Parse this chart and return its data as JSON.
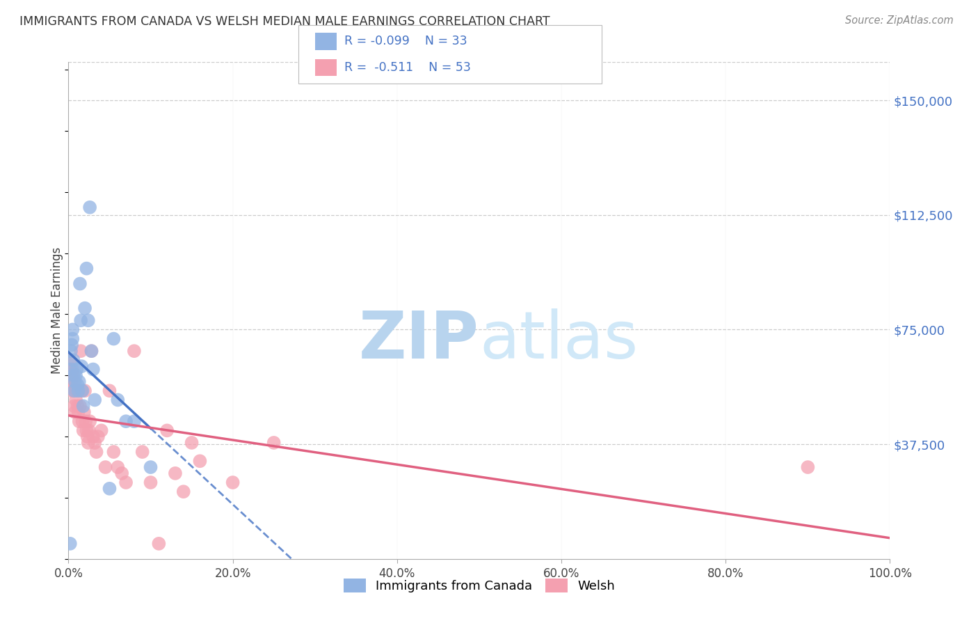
{
  "title": "IMMIGRANTS FROM CANADA VS WELSH MEDIAN MALE EARNINGS CORRELATION CHART",
  "source": "Source: ZipAtlas.com",
  "ylabel": "Median Male Earnings",
  "ytick_labels": [
    "$150,000",
    "$112,500",
    "$75,000",
    "$37,500"
  ],
  "ytick_values": [
    150000,
    112500,
    75000,
    37500
  ],
  "ylim": [
    0,
    162500
  ],
  "xlim": [
    0,
    100
  ],
  "xtick_values": [
    0,
    20,
    40,
    60,
    80,
    100
  ],
  "xtick_labels": [
    "0.0%",
    "20.0%",
    "40.0%",
    "60.0%",
    "80.0%",
    "100.0%"
  ],
  "legend_label1": "Immigrants from Canada",
  "legend_label2": "Welsh",
  "r1": "-0.099",
  "n1": "33",
  "r2": "-0.511",
  "n2": "53",
  "blue_color": "#92B4E3",
  "pink_color": "#F4A0B0",
  "line_blue": "#4472C4",
  "line_pink": "#E06080",
  "watermark_color": "#C8DEF0",
  "background": "#ffffff",
  "canada_x": [
    0.2,
    0.3,
    0.3,
    0.4,
    0.5,
    0.5,
    0.6,
    0.6,
    0.7,
    0.8,
    0.9,
    1.0,
    1.1,
    1.2,
    1.3,
    1.4,
    1.5,
    1.6,
    1.7,
    1.8,
    2.0,
    2.2,
    2.4,
    2.6,
    2.8,
    3.0,
    3.2,
    5.0,
    5.5,
    6.0,
    7.0,
    8.0,
    10.0
  ],
  "canada_y": [
    5000,
    62000,
    68000,
    70000,
    72000,
    75000,
    60000,
    65000,
    55000,
    58000,
    60000,
    62000,
    57000,
    55000,
    58000,
    90000,
    78000,
    63000,
    55000,
    50000,
    82000,
    95000,
    78000,
    115000,
    68000,
    62000,
    52000,
    23000,
    72000,
    52000,
    45000,
    45000,
    30000
  ],
  "welsh_x": [
    0.1,
    0.2,
    0.3,
    0.3,
    0.4,
    0.5,
    0.5,
    0.6,
    0.7,
    0.7,
    0.8,
    0.9,
    1.0,
    1.1,
    1.2,
    1.3,
    1.4,
    1.5,
    1.6,
    1.7,
    1.8,
    1.9,
    2.0,
    2.1,
    2.2,
    2.3,
    2.4,
    2.5,
    2.6,
    2.8,
    3.0,
    3.2,
    3.4,
    3.6,
    4.0,
    4.5,
    5.0,
    5.5,
    6.0,
    6.5,
    7.0,
    8.0,
    9.0,
    10.0,
    11.0,
    12.0,
    13.0,
    14.0,
    15.0,
    16.0,
    20.0,
    25.0,
    90.0
  ],
  "welsh_y": [
    62000,
    65000,
    60000,
    58000,
    55000,
    60000,
    62000,
    58000,
    55000,
    50000,
    48000,
    52000,
    55000,
    50000,
    48000,
    45000,
    50000,
    68000,
    55000,
    45000,
    42000,
    48000,
    55000,
    45000,
    42000,
    40000,
    38000,
    42000,
    45000,
    68000,
    40000,
    38000,
    35000,
    40000,
    42000,
    30000,
    55000,
    35000,
    30000,
    28000,
    25000,
    68000,
    35000,
    25000,
    5000,
    42000,
    28000,
    22000,
    38000,
    32000,
    25000,
    38000,
    30000
  ]
}
